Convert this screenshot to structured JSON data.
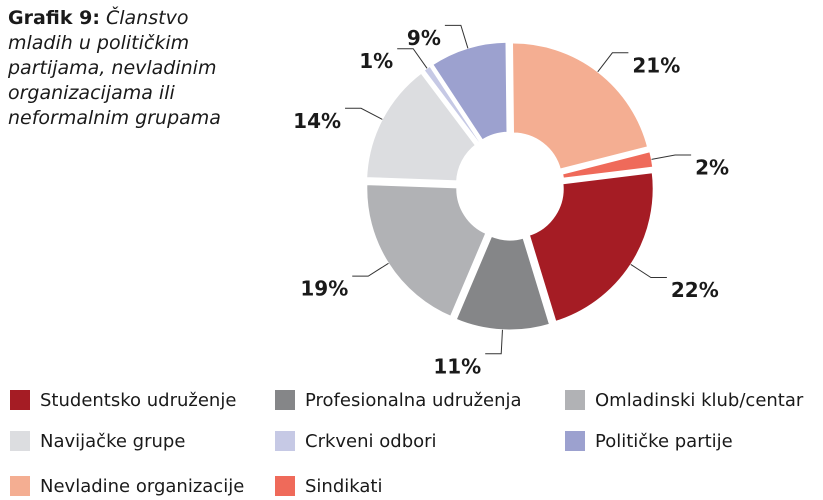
{
  "chart_data": {
    "type": "pie",
    "title_number": "Grafik 9:",
    "title": "Članstvo mladih u političkim partijama, nevladinim organizacijama ili neformalnim grupama",
    "categories": [
      "Studentsko udruženje",
      "Profesionalna udruženja",
      "Omladinski klub/centar",
      "Navijačke grupe",
      "Crkveni odbori",
      "Političke partije",
      "Nevladine organizacije",
      "Sindikati"
    ],
    "values": [
      22,
      11,
      19,
      14,
      1,
      9,
      21,
      2
    ],
    "value_labels": [
      "22%",
      "11%",
      "19%",
      "14%",
      "1%",
      "9%",
      "21%",
      "2%"
    ],
    "colors": [
      "#a51c24",
      "#858688",
      "#b1b2b5",
      "#dcdde0",
      "#c6c9e5",
      "#9ca1cf",
      "#f4ae92",
      "#ef6a5a"
    ],
    "donut": true,
    "legend": "bottom"
  }
}
